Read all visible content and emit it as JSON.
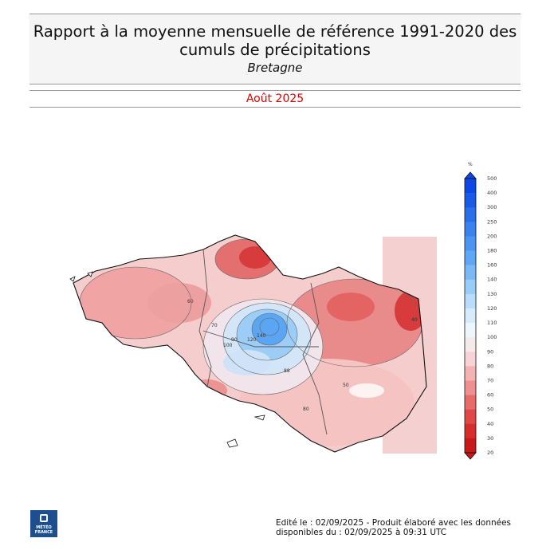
{
  "header": {
    "title_line1": "Rapport à la moyenne mensuelle de référence 1991-2020 des",
    "title_line2": "cumuls de précipitations",
    "region": "Bretagne",
    "period": "Août 2025"
  },
  "colorbar": {
    "unit": "%",
    "ticks": [
      "500",
      "400",
      "300",
      "250",
      "200",
      "180",
      "160",
      "140",
      "130",
      "120",
      "110",
      "100",
      "90",
      "80",
      "70",
      "60",
      "50",
      "40",
      "30",
      "20"
    ],
    "colors": [
      "#0d47e6",
      "#1a5ae9",
      "#2a6eec",
      "#3a82ef",
      "#4b94f1",
      "#5fa6f3",
      "#7ab9f5",
      "#99ccf7",
      "#b8dcf9",
      "#d6ebfb",
      "#eef6fd",
      "#f4eaea",
      "#f7d3d3",
      "#f4b3b3",
      "#ef9090",
      "#e86b6b",
      "#e04848",
      "#d62c2c",
      "#c91818"
    ]
  },
  "map": {
    "contour_labels": [
      {
        "text": "70"
      },
      {
        "text": "80"
      },
      {
        "text": "60"
      },
      {
        "text": "90"
      },
      {
        "text": "100"
      },
      {
        "text": "120"
      },
      {
        "text": "140"
      },
      {
        "text": "88"
      },
      {
        "text": "40"
      },
      {
        "text": "50"
      }
    ]
  },
  "logo": {
    "line1": "MÉTÉO",
    "line2": "FRANCE"
  },
  "footer": {
    "line1": "Edité le : 02/09/2025 - Produit élaboré avec les données",
    "line2": "disponibles du : 02/09/2025 à 09:31 UTC"
  }
}
